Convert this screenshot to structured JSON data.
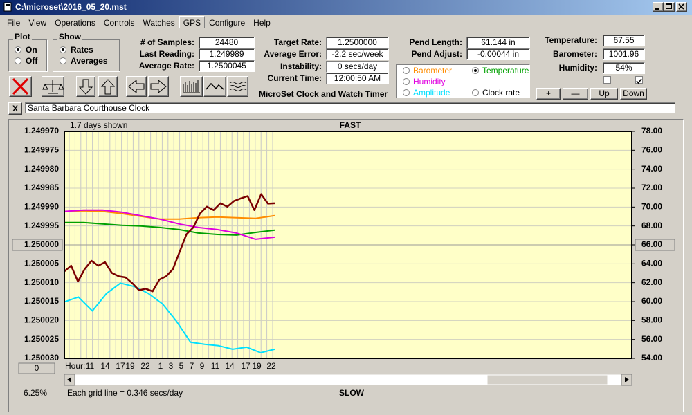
{
  "window": {
    "title": "C:\\microset\\2016_05_20.mst"
  },
  "menu": [
    "File",
    "View",
    "Operations",
    "Controls",
    "Watches",
    "GPS",
    "Configure",
    "Help"
  ],
  "plot": {
    "label": "Plot",
    "options": [
      "On",
      "Off"
    ]
  },
  "show": {
    "label": "Show",
    "options": [
      "Rates",
      "Averages"
    ]
  },
  "stats": [
    {
      "label": "# of Samples:",
      "value": "24480"
    },
    {
      "label": "Last Reading:",
      "value": "1.249989"
    },
    {
      "label": "Average Rate:",
      "value": "1.2500045"
    }
  ],
  "timing": [
    {
      "label": "Target Rate:",
      "value": "1.2500000"
    },
    {
      "label": "Average Error:",
      "value": "-2.2 sec/week"
    },
    {
      "label": "Instability:",
      "value": "0 secs/day"
    },
    {
      "label": "Current Time:",
      "value": "12:00:50 AM"
    }
  ],
  "caption": "MicroSet Clock and Watch Timer",
  "pendulum": [
    {
      "label": "Pend Length:",
      "value": "61.144 in"
    },
    {
      "label": "Pend Adjust:",
      "value": "-0.00044 in"
    }
  ],
  "environment": [
    {
      "label": "Temperature:",
      "value": "67.55"
    },
    {
      "label": "Barometer:",
      "value": "1001.96"
    },
    {
      "label": "Humidity:",
      "value": "54%"
    }
  ],
  "adjust_buttons": [
    "+",
    "—",
    "Up",
    "Down"
  ],
  "clear_button": "X",
  "clock_name": "Santa Barbara Courthouse Clock",
  "chart": {
    "type": "line",
    "span": "1.7 days shown",
    "top_label": "FAST",
    "bottom_label": "SLOW",
    "x_label": "Hour:",
    "hour_labels": [
      "11",
      "14",
      "17",
      "19",
      "22",
      "1",
      "3",
      "5",
      "7",
      "9",
      "11",
      "14",
      "17",
      "19",
      "22"
    ],
    "offset": "0",
    "zoom": "6.25%",
    "grid_note": "Each grid line = 0.346 secs/day",
    "ylim": [
      1.25003,
      1.24997
    ],
    "yticks": [
      {
        "value": 1.24997,
        "label": "1.249970"
      },
      {
        "value": 1.249975,
        "label": "1.249975"
      },
      {
        "value": 1.24998,
        "label": "1.249980"
      },
      {
        "value": 1.249985,
        "label": "1.249985"
      },
      {
        "value": 1.24999,
        "label": "1.249990"
      },
      {
        "value": 1.249995,
        "label": "1.249995"
      },
      {
        "value": 1.25,
        "label": "1.250000"
      },
      {
        "value": 1.250005,
        "label": "1.250005"
      },
      {
        "value": 1.25001,
        "label": "1.250010"
      },
      {
        "value": 1.250015,
        "label": "1.250015"
      },
      {
        "value": 1.25002,
        "label": "1.250020"
      },
      {
        "value": 1.250025,
        "label": "1.250025"
      },
      {
        "value": 1.25003,
        "label": "1.250030"
      }
    ],
    "y2lim": [
      54,
      78
    ],
    "y2ticks": [
      {
        "value": 78,
        "label": "78.00"
      },
      {
        "value": 76,
        "label": "76.00"
      },
      {
        "value": 74,
        "label": "74.00"
      },
      {
        "value": 72,
        "label": "72.00"
      },
      {
        "value": 70,
        "label": "70.00"
      },
      {
        "value": 68,
        "label": "68.00"
      },
      {
        "value": 66,
        "label": "66.00"
      },
      {
        "value": 64,
        "label": "64.00"
      },
      {
        "value": 62,
        "label": "62.00"
      },
      {
        "value": 60,
        "label": "60.00"
      },
      {
        "value": 58,
        "label": "58.00"
      },
      {
        "value": 56,
        "label": "56.00"
      },
      {
        "value": 54,
        "label": "54.00"
      }
    ],
    "series": [
      {
        "name": "Clock rate",
        "color": "#7b0000",
        "axis": "y",
        "values": [
          1.250007,
          1.2500055,
          1.2500097,
          1.2500064,
          1.2500042,
          1.2500055,
          1.2500046,
          1.2500074,
          1.2500083,
          1.2500086,
          1.2500101,
          1.250012,
          1.2500116,
          1.2500123,
          1.2500092,
          1.2500083,
          1.2500064,
          1.2500018,
          1.2499972,
          1.2499954,
          1.2499917,
          1.2499899,
          1.2499908,
          1.249989,
          1.2499899,
          1.2499884,
          1.2499877,
          1.2499871,
          1.2499908,
          1.2499866,
          1.2499891,
          1.249989
        ]
      },
      {
        "name": "Barometer",
        "color": "#ff8c00",
        "axis": "y2",
        "values": [
          69.54,
          69.61,
          69.54,
          69.31,
          69.02,
          68.72,
          68.72,
          68.87,
          68.94,
          68.87,
          68.8,
          69.09
        ]
      },
      {
        "name": "Temperature",
        "color": "#00a000",
        "axis": "y2",
        "values": [
          68.36,
          68.36,
          68.21,
          68.06,
          67.99,
          67.84,
          67.62,
          67.25,
          67.1,
          67.03,
          67.32,
          67.55
        ]
      },
      {
        "name": "Humidity",
        "color": "#e000e0",
        "axis": "y2",
        "values": [
          69.54,
          69.68,
          69.68,
          69.46,
          69.09,
          68.72,
          68.21,
          67.84,
          67.62,
          67.25,
          66.59,
          66.81
        ]
      },
      {
        "name": "Amplitude",
        "color": "#00e0ff",
        "axis": "y2",
        "values": [
          59.97,
          60.48,
          59.01,
          60.85,
          61.95,
          61.59,
          60.85,
          59.75,
          57.91,
          55.7,
          55.48,
          55.33,
          54.96,
          55.18,
          54.59,
          54.96
        ]
      }
    ]
  }
}
